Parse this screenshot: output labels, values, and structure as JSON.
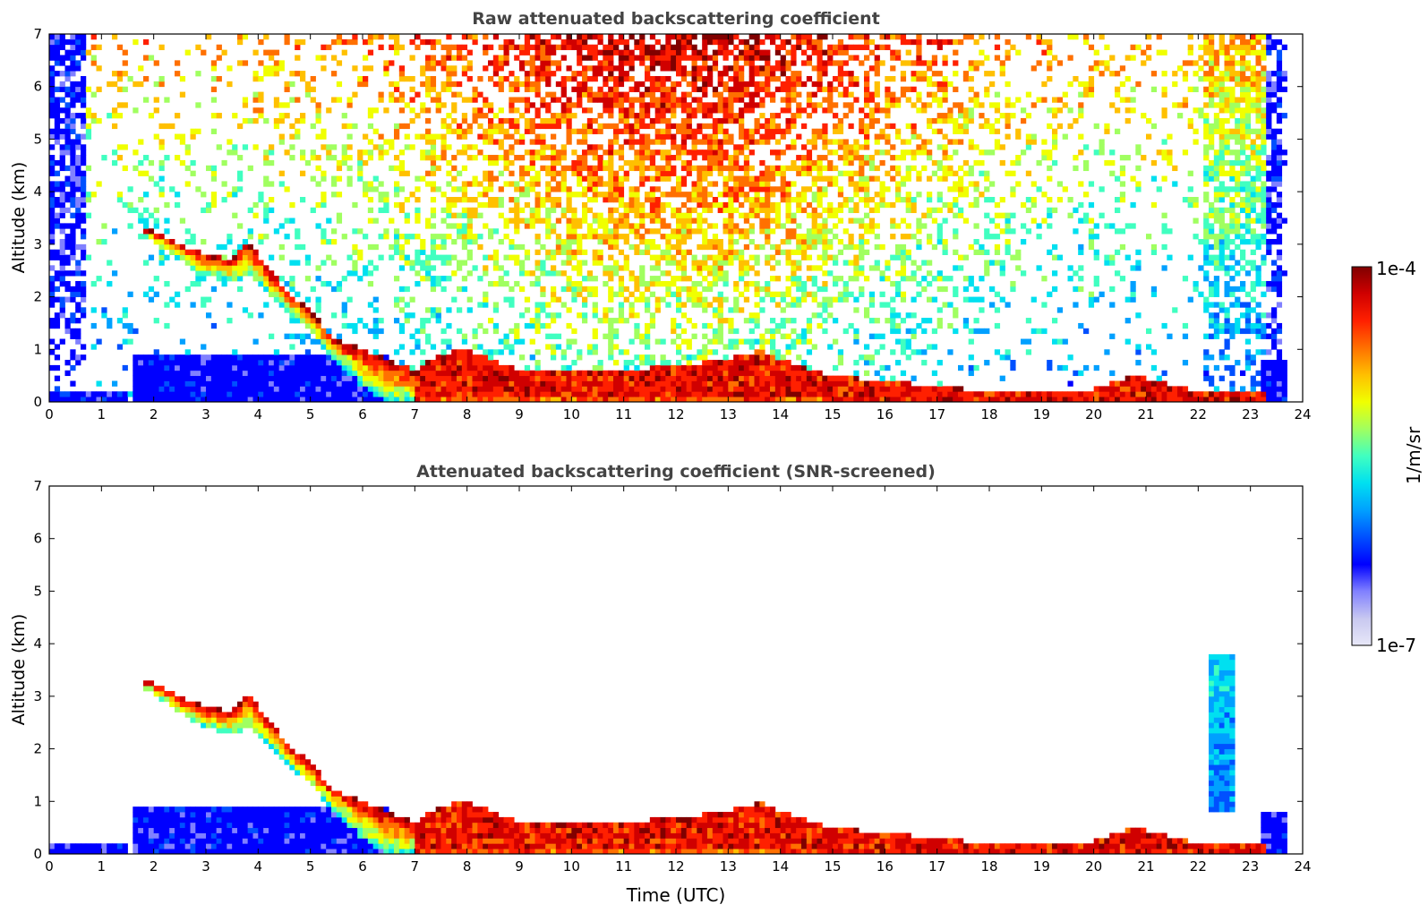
{
  "chart_data": [
    {
      "type": "heatmap",
      "title": "Raw attenuated backscattering coefficient",
      "xlabel": "",
      "ylabel": "Altitude (km)",
      "xlim": [
        0,
        24
      ],
      "ylim": [
        0,
        7
      ],
      "xticks": [
        "0",
        "1",
        "2",
        "3",
        "4",
        "5",
        "6",
        "7",
        "8",
        "9",
        "10",
        "11",
        "12",
        "13",
        "14",
        "15",
        "16",
        "17",
        "18",
        "19",
        "20",
        "21",
        "22",
        "23",
        "24"
      ],
      "yticks": [
        "0",
        "1",
        "2",
        "3",
        "4",
        "5",
        "6",
        "7"
      ],
      "cloud_top_km": [
        [
          1.9,
          3.3
        ],
        [
          2.5,
          3.0
        ],
        [
          3.0,
          2.8
        ],
        [
          3.5,
          2.7
        ],
        [
          3.8,
          3.1
        ],
        [
          4.3,
          2.4
        ],
        [
          5.0,
          1.7
        ],
        [
          5.5,
          1.2
        ],
        [
          6.0,
          1.0
        ],
        [
          6.5,
          0.8
        ],
        [
          7.0,
          0.6
        ],
        [
          7.5,
          0.9
        ],
        [
          8.0,
          1.0
        ],
        [
          9.0,
          0.6
        ],
        [
          10.0,
          0.6
        ],
        [
          11.0,
          0.6
        ],
        [
          12.0,
          0.7
        ],
        [
          13.0,
          0.8
        ],
        [
          13.6,
          1.0
        ],
        [
          14.0,
          0.8
        ],
        [
          15.0,
          0.5
        ],
        [
          16.0,
          0.4
        ],
        [
          17.0,
          0.3
        ],
        [
          18.0,
          0.2
        ],
        [
          19.0,
          0.2
        ],
        [
          20.0,
          0.25
        ],
        [
          20.7,
          0.5
        ],
        [
          21.2,
          0.4
        ],
        [
          22.0,
          0.2
        ],
        [
          23.0,
          0.2
        ]
      ],
      "cloud_base_km": [
        [
          1.9,
          3.1
        ],
        [
          2.5,
          2.7
        ],
        [
          3.0,
          2.4
        ],
        [
          3.5,
          2.3
        ],
        [
          3.8,
          2.4
        ],
        [
          4.3,
          2.0
        ],
        [
          5.0,
          1.3
        ],
        [
          5.5,
          0.8
        ],
        [
          6.0,
          0.3
        ],
        [
          6.5,
          0.0
        ],
        [
          24.0,
          0.0
        ]
      ]
    },
    {
      "type": "heatmap",
      "title": "Attenuated backscattering coefficient (SNR-screened)",
      "xlabel": "Time (UTC)",
      "ylabel": "Altitude (km)",
      "xlim": [
        0,
        24
      ],
      "ylim": [
        0,
        7
      ],
      "xticks": [
        "0",
        "1",
        "2",
        "3",
        "4",
        "5",
        "6",
        "7",
        "8",
        "9",
        "10",
        "11",
        "12",
        "13",
        "14",
        "15",
        "16",
        "17",
        "18",
        "19",
        "20",
        "21",
        "22",
        "23",
        "24"
      ],
      "yticks": [
        "0",
        "1",
        "2",
        "3",
        "4",
        "5",
        "6",
        "7"
      ],
      "snr_screened": true
    }
  ],
  "colorbar": {
    "label": "1/m/sr",
    "max_label": "1e-4",
    "min_label": "1e-7",
    "range": [
      1e-07,
      0.0001
    ],
    "scale": "log",
    "colormap": [
      "#e8e8f8",
      "#c8c8f0",
      "#8080ff",
      "#0000ff",
      "#0050ff",
      "#00a0ff",
      "#00e0f0",
      "#40ffc0",
      "#a0ff60",
      "#f0ff00",
      "#ffc000",
      "#ff7000",
      "#ff2000",
      "#d00000",
      "#800000"
    ]
  }
}
